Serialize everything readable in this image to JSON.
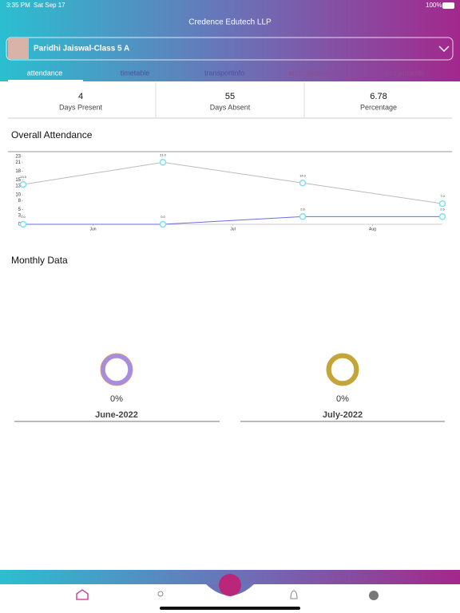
{
  "status": {
    "time": "3:35 PM",
    "date": "Sat Sep 17",
    "battery": "100%"
  },
  "header": {
    "title": "Credence Edutech LLP"
  },
  "student": {
    "name": "Paridhi Jaiswal-Class 5 A"
  },
  "tabs": [
    "attendance",
    "timetable",
    "transportinfo",
    "announcements",
    "assignments"
  ],
  "stats": [
    {
      "value": 4,
      "label": "Days Present"
    },
    {
      "value": 55,
      "label": "Days Absent"
    },
    {
      "value": 6.78,
      "label": "Percentage"
    }
  ],
  "chart_data": {
    "type": "line",
    "title": "Overall Attendance",
    "x": [
      0,
      1,
      2,
      3
    ],
    "xlim": [
      0,
      3
    ],
    "xticks": [
      {
        "value": 0.5,
        "label": "Jun"
      },
      {
        "value": 1.5,
        "label": "Jul"
      },
      {
        "value": 2.5,
        "label": "Aug"
      }
    ],
    "ylim": [
      0,
      23
    ],
    "yticks": [
      0,
      3,
      5,
      8,
      10,
      13,
      15,
      18,
      21,
      23
    ],
    "series": [
      {
        "color": "#bbbbbb",
        "marker": "#7fdff0",
        "values": [
          13.5,
          21.0,
          14.0,
          7.0
        ],
        "value_labels": [
          "13.5",
          "21.0",
          "14.0",
          "7.0"
        ]
      },
      {
        "color": "#6a6ee0",
        "marker": "#7fdff0",
        "values": [
          0.0,
          0.0,
          2.6,
          2.6
        ],
        "value_labels": [
          "0.0",
          "0.0",
          "2.6",
          "2.6"
        ]
      }
    ]
  },
  "monthly": {
    "title": "Monthly Data",
    "items": [
      {
        "value": 0,
        "value_label": "0%",
        "month": "June-2022",
        "color": "#a58ee0",
        "outline": "#e8a050"
      },
      {
        "value": 0,
        "value_label": "0%",
        "month": "July-2022",
        "color": "#c4a53a",
        "outline": "#c4a53a"
      }
    ]
  }
}
